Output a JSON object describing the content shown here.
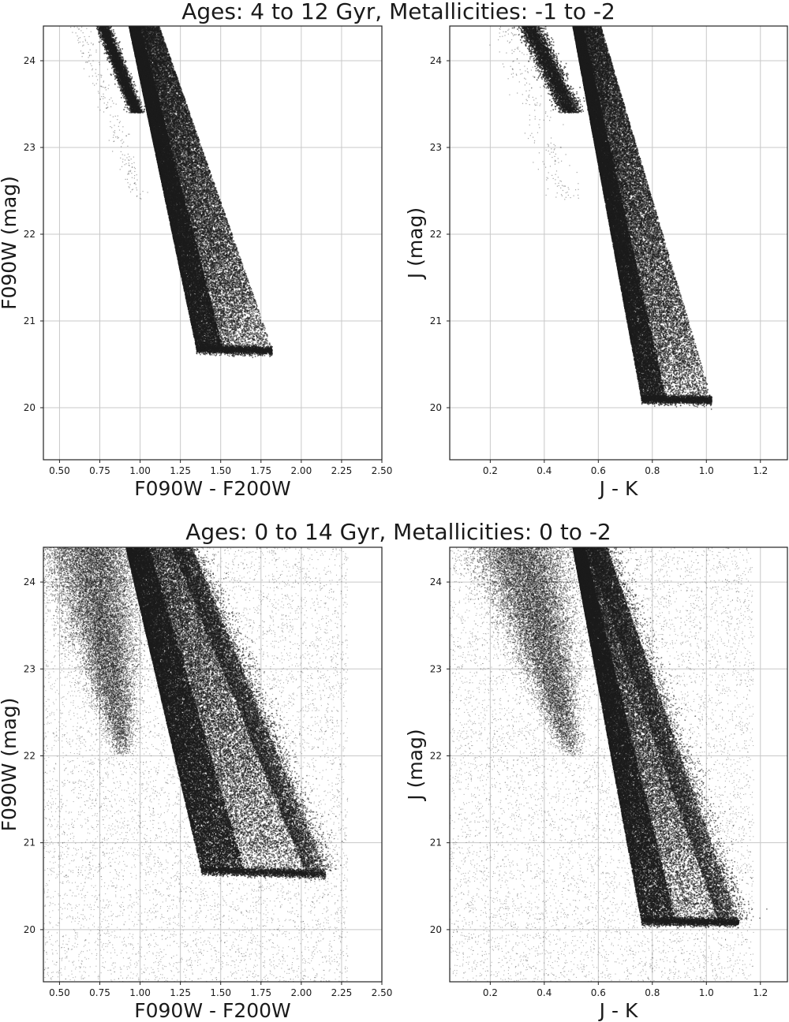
{
  "figure": {
    "rows": [
      {
        "title": "Ages: 4 to 12 Gyr, Metallicities: -1 to -2",
        "variant": "old"
      },
      {
        "title": "Ages: 0 to 14 Gyr, Metallicities: 0 to -2",
        "variant": "full"
      }
    ]
  },
  "chart_data": [
    {
      "type": "scatter",
      "panel": "top-left",
      "row": 0,
      "col": 0,
      "xlabel": "F090W - F200W",
      "ylabel": "F090W (mag)",
      "xlim": [
        0.4,
        2.5
      ],
      "ylim": [
        24.4,
        19.4
      ],
      "y_inverted": true,
      "grid": true,
      "xticks": [
        "0.50",
        "0.75",
        "1.00",
        "1.25",
        "1.50",
        "1.75",
        "2.00",
        "2.25",
        "2.50"
      ],
      "xtick_values": [
        0.5,
        0.75,
        1.0,
        1.25,
        1.5,
        1.75,
        2.0,
        2.25,
        2.5
      ],
      "yticks": [
        "20",
        "21",
        "22",
        "23",
        "24"
      ],
      "ytick_values": [
        20,
        21,
        22,
        23,
        24
      ],
      "marker_color": "#1c1c1c",
      "features": {
        "rgb_tip_mag": 20.68,
        "rgb_tip_color_range": [
          1.35,
          1.82
        ],
        "rgb_base_color_range": [
          0.92,
          1.1
        ],
        "lower_branch_color_range": [
          0.75,
          0.98
        ]
      }
    },
    {
      "type": "scatter",
      "panel": "top-right",
      "row": 0,
      "col": 1,
      "xlabel": "J - K",
      "ylabel": "J (mag)",
      "xlim": [
        0.05,
        1.3
      ],
      "ylim": [
        24.4,
        19.4
      ],
      "y_inverted": true,
      "grid": true,
      "xticks": [
        "0.2",
        "0.4",
        "0.6",
        "0.8",
        "1.0",
        "1.2"
      ],
      "xtick_values": [
        0.2,
        0.4,
        0.6,
        0.8,
        1.0,
        1.2
      ],
      "yticks": [
        "20",
        "21",
        "22",
        "23",
        "24"
      ],
      "ytick_values": [
        20,
        21,
        22,
        23,
        24
      ],
      "marker_color": "#1c1c1c",
      "features": {
        "rgb_tip_mag": 20.1,
        "rgb_tip_color_range": [
          0.76,
          1.02
        ],
        "rgb_base_color_range": [
          0.5,
          0.6
        ],
        "lower_branch_color_range": [
          0.33,
          0.5
        ]
      }
    },
    {
      "type": "scatter",
      "panel": "bottom-left",
      "row": 1,
      "col": 0,
      "xlabel": "F090W - F200W",
      "ylabel": "F090W (mag)",
      "xlim": [
        0.4,
        2.5
      ],
      "ylim": [
        24.4,
        19.4
      ],
      "y_inverted": true,
      "grid": true,
      "xticks": [
        "0.50",
        "0.75",
        "1.00",
        "1.25",
        "1.50",
        "1.75",
        "2.00",
        "2.25",
        "2.50"
      ],
      "xtick_values": [
        0.5,
        0.75,
        1.0,
        1.25,
        1.5,
        1.75,
        2.0,
        2.25,
        2.5
      ],
      "yticks": [
        "20",
        "21",
        "22",
        "23",
        "24"
      ],
      "ytick_values": [
        20,
        21,
        22,
        23,
        24
      ],
      "marker_color": "#1c1c1c",
      "features": {
        "rgb_tip_mag": 20.68,
        "rgb_tip_color_range": [
          1.38,
          2.15
        ],
        "rgb_base_color_range": [
          0.9,
          1.3
        ],
        "background_scatter": true
      }
    },
    {
      "type": "scatter",
      "panel": "bottom-right",
      "row": 1,
      "col": 1,
      "xlabel": "J - K",
      "ylabel": "J (mag)",
      "xlim": [
        0.05,
        1.3
      ],
      "ylim": [
        24.4,
        19.4
      ],
      "y_inverted": true,
      "grid": true,
      "xticks": [
        "0.2",
        "0.4",
        "0.6",
        "0.8",
        "1.0",
        "1.2"
      ],
      "xtick_values": [
        0.2,
        0.4,
        0.6,
        0.8,
        1.0,
        1.2
      ],
      "yticks": [
        "20",
        "21",
        "22",
        "23",
        "24"
      ],
      "ytick_values": [
        20,
        21,
        22,
        23,
        24
      ],
      "marker_color": "#1c1c1c",
      "features": {
        "rgb_tip_mag": 20.1,
        "rgb_tip_color_range": [
          0.76,
          1.12
        ],
        "rgb_base_color_range": [
          0.5,
          0.62
        ],
        "background_scatter": true
      }
    }
  ]
}
